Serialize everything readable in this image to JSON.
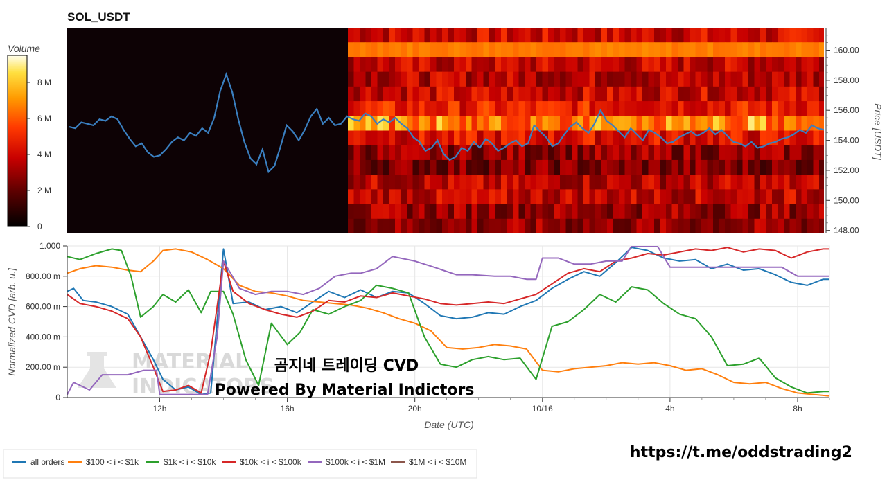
{
  "title": "SOL_USDT",
  "colorbar": {
    "label": "Volume",
    "ticks": [
      "0",
      "2 M",
      "4 M",
      "6 M",
      "8 M"
    ],
    "tick_values": [
      0,
      2,
      4,
      6,
      8
    ],
    "max": 9.5
  },
  "watermark": {
    "line1": "곰지네 트레이딩 CVD",
    "line2": "Powered By Material Indictors",
    "logo_line1": "MATERIAL",
    "logo_line2": "INDICATORS"
  },
  "url_text": "https://t.me/oddstrading2",
  "colors": {
    "all_orders": "#1f77b4",
    "r100_1k": "#ff7f0e",
    "r1k_10k": "#2ca02c",
    "r10k_100k": "#d62728",
    "r100k_1m": "#9467bd",
    "r1m_10m": "#8c564b",
    "heatmap_bg": "#0d0205",
    "price_line": "#3a7fc0"
  },
  "chart_data": [
    {
      "type": "heatmap",
      "title": "SOL_USDT",
      "ylabel": "Price [USDT]",
      "ylim": [
        147.8,
        161.5
      ],
      "y_ticks": [
        "148.00",
        "150.00",
        "152.00",
        "154.00",
        "156.00",
        "158.00",
        "160.00"
      ],
      "y_tick_values": [
        148,
        150,
        152,
        154,
        156,
        158,
        160
      ],
      "price_series": [
        154.9,
        154.8,
        155.2,
        155.1,
        155.0,
        155.4,
        155.3,
        155.6,
        155.4,
        154.7,
        154.1,
        153.6,
        153.8,
        153.2,
        152.9,
        153.0,
        153.4,
        153.9,
        154.2,
        154.0,
        154.5,
        154.3,
        154.8,
        154.5,
        155.5,
        157.3,
        158.4,
        157.2,
        155.4,
        153.9,
        152.8,
        152.4,
        153.4,
        151.9,
        152.3,
        153.6,
        155.0,
        154.6,
        154.0,
        154.7,
        155.6,
        156.1,
        155.1,
        155.5,
        155.0,
        155.1,
        155.6,
        155.4,
        155.3,
        155.8,
        155.6,
        155.1,
        155.4,
        155.2,
        155.5,
        155.1,
        154.8,
        154.2,
        153.9,
        153.3,
        153.5,
        154.0,
        153.1,
        152.7,
        152.9,
        153.5,
        153.3,
        153.9,
        153.5,
        154.1,
        153.8,
        153.3,
        153.5,
        153.8,
        154.0,
        153.6,
        153.8,
        155.0,
        154.6,
        154.2,
        153.6,
        153.8,
        154.4,
        154.9,
        155.2,
        154.8,
        154.5,
        155.1,
        156.0,
        155.3,
        155.0,
        154.6,
        154.2,
        154.8,
        154.4,
        154.0,
        154.7,
        154.5,
        154.2,
        153.8,
        153.9,
        154.2,
        154.4,
        154.6,
        154.3,
        154.5,
        154.8,
        154.4,
        154.7,
        154.3,
        153.9,
        153.8,
        153.6,
        153.9,
        153.5,
        153.6,
        153.8,
        153.9,
        154.1,
        154.2,
        154.4,
        154.7,
        154.5,
        155.0,
        154.8,
        154.7
      ],
      "price_series_x_range": [
        "early day 1",
        "~09:30 (day 2)"
      ]
    },
    {
      "type": "line",
      "xlabel": "Date (UTC)",
      "ylabel": "Normalized CVD [arb. u.]",
      "ylim": [
        0,
        1.0
      ],
      "y_ticks": [
        "0",
        "200.00 m",
        "400.00 m",
        "600.00 m",
        "800.00 m",
        "1.000"
      ],
      "y_tick_values": [
        0,
        0.2,
        0.4,
        0.6,
        0.8,
        1.0
      ],
      "x_ticks": [
        "12h",
        "16h",
        "20h",
        "10/16",
        "4h",
        "8h"
      ],
      "x_tick_hours": [
        12,
        16,
        20,
        24,
        28,
        32
      ],
      "x_range_hours": [
        9.1,
        33.0
      ],
      "legend_position": "bottom",
      "series": [
        {
          "name": "all orders",
          "color": "#1f77b4",
          "x": [
            9.1,
            9.3,
            9.6,
            10.0,
            10.5,
            11.0,
            11.4,
            11.8,
            12.1,
            12.5,
            12.9,
            13.3,
            13.6,
            14.0,
            14.3,
            14.8,
            15.3,
            15.8,
            16.3,
            16.8,
            17.3,
            17.8,
            18.3,
            18.8,
            19.3,
            19.8,
            20.3,
            20.8,
            21.3,
            21.8,
            22.3,
            22.8,
            23.3,
            23.8,
            24.3,
            24.8,
            25.3,
            25.8,
            26.3,
            26.8,
            27.3,
            27.8,
            28.3,
            28.8,
            29.3,
            29.8,
            30.3,
            30.8,
            31.3,
            31.8,
            32.3,
            32.8,
            33.0
          ],
          "values": [
            0.7,
            0.72,
            0.64,
            0.63,
            0.6,
            0.55,
            0.4,
            0.25,
            0.12,
            0.05,
            0.07,
            0.02,
            0.03,
            0.98,
            0.62,
            0.63,
            0.58,
            0.6,
            0.56,
            0.63,
            0.7,
            0.66,
            0.71,
            0.66,
            0.7,
            0.69,
            0.62,
            0.54,
            0.52,
            0.53,
            0.56,
            0.55,
            0.6,
            0.64,
            0.72,
            0.78,
            0.83,
            0.8,
            0.89,
            0.99,
            0.97,
            0.92,
            0.9,
            0.91,
            0.85,
            0.88,
            0.84,
            0.85,
            0.81,
            0.76,
            0.74,
            0.78,
            0.78
          ]
        },
        {
          "name": "$100 < i < $1k",
          "color": "#ff7f0e",
          "x": [
            9.1,
            9.5,
            10.0,
            10.5,
            11.0,
            11.4,
            11.8,
            12.1,
            12.5,
            13.0,
            13.5,
            14.0,
            14.5,
            15.0,
            15.5,
            16.0,
            16.5,
            17.0,
            17.5,
            18.0,
            18.5,
            19.0,
            19.5,
            20.0,
            20.5,
            21.0,
            21.5,
            22.0,
            22.5,
            23.0,
            23.5,
            24.0,
            24.5,
            25.0,
            25.5,
            26.0,
            26.5,
            27.0,
            27.5,
            28.0,
            28.5,
            29.0,
            29.5,
            30.0,
            30.5,
            31.0,
            31.5,
            32.0,
            32.5,
            33.0
          ],
          "values": [
            0.82,
            0.85,
            0.87,
            0.86,
            0.84,
            0.83,
            0.9,
            0.97,
            0.98,
            0.96,
            0.91,
            0.85,
            0.74,
            0.7,
            0.69,
            0.67,
            0.64,
            0.63,
            0.62,
            0.61,
            0.59,
            0.56,
            0.52,
            0.49,
            0.44,
            0.33,
            0.32,
            0.33,
            0.35,
            0.34,
            0.32,
            0.18,
            0.17,
            0.19,
            0.2,
            0.21,
            0.23,
            0.22,
            0.23,
            0.21,
            0.18,
            0.19,
            0.15,
            0.1,
            0.09,
            0.1,
            0.06,
            0.03,
            0.02,
            0.01
          ]
        },
        {
          "name": "$1k < i < $10k",
          "color": "#2ca02c",
          "x": [
            9.1,
            9.5,
            10.0,
            10.5,
            10.8,
            11.1,
            11.4,
            11.8,
            12.1,
            12.5,
            12.9,
            13.3,
            13.6,
            14.0,
            14.3,
            14.7,
            15.1,
            15.5,
            16.0,
            16.4,
            16.8,
            17.3,
            17.8,
            18.3,
            18.8,
            19.3,
            19.8,
            20.3,
            20.8,
            21.3,
            21.8,
            22.3,
            22.8,
            23.3,
            23.8,
            24.3,
            24.8,
            25.3,
            25.8,
            26.3,
            26.8,
            27.3,
            27.8,
            28.3,
            28.8,
            29.3,
            29.8,
            30.3,
            30.8,
            31.3,
            31.8,
            32.3,
            32.8,
            33.0
          ],
          "values": [
            0.93,
            0.91,
            0.95,
            0.98,
            0.97,
            0.8,
            0.53,
            0.6,
            0.68,
            0.63,
            0.71,
            0.56,
            0.7,
            0.7,
            0.55,
            0.25,
            0.08,
            0.49,
            0.35,
            0.43,
            0.58,
            0.55,
            0.6,
            0.64,
            0.74,
            0.72,
            0.69,
            0.4,
            0.22,
            0.2,
            0.25,
            0.27,
            0.25,
            0.26,
            0.12,
            0.47,
            0.5,
            0.58,
            0.68,
            0.63,
            0.73,
            0.71,
            0.62,
            0.55,
            0.52,
            0.4,
            0.21,
            0.22,
            0.26,
            0.13,
            0.07,
            0.03,
            0.04,
            0.04
          ]
        },
        {
          "name": "$10k < i < $100k",
          "color": "#d62728",
          "x": [
            9.1,
            9.5,
            10.0,
            10.5,
            11.0,
            11.4,
            11.8,
            12.1,
            12.5,
            12.9,
            13.3,
            13.6,
            14.0,
            14.3,
            14.8,
            15.3,
            15.8,
            16.3,
            16.8,
            17.3,
            17.8,
            18.3,
            18.8,
            19.3,
            19.8,
            20.3,
            20.8,
            21.3,
            21.8,
            22.3,
            22.8,
            23.3,
            23.8,
            24.3,
            24.8,
            25.3,
            25.8,
            26.3,
            26.8,
            27.3,
            27.8,
            28.3,
            28.8,
            29.3,
            29.8,
            30.3,
            30.8,
            31.3,
            31.8,
            32.3,
            32.8,
            33.0
          ],
          "values": [
            0.68,
            0.62,
            0.6,
            0.57,
            0.52,
            0.4,
            0.2,
            0.04,
            0.05,
            0.08,
            0.03,
            0.3,
            0.9,
            0.7,
            0.62,
            0.58,
            0.55,
            0.53,
            0.57,
            0.64,
            0.63,
            0.67,
            0.66,
            0.69,
            0.67,
            0.65,
            0.62,
            0.61,
            0.62,
            0.63,
            0.62,
            0.65,
            0.68,
            0.75,
            0.82,
            0.85,
            0.83,
            0.9,
            0.92,
            0.95,
            0.94,
            0.96,
            0.98,
            0.97,
            0.99,
            0.96,
            0.98,
            0.97,
            0.92,
            0.96,
            0.98,
            0.98
          ]
        },
        {
          "name": "$100k < i < $1M",
          "color": "#9467bd",
          "x": [
            9.1,
            9.3,
            9.8,
            10.2,
            10.5,
            11.0,
            11.5,
            11.9,
            12.0,
            13.0,
            13.5,
            13.8,
            14.0,
            14.5,
            15.0,
            15.5,
            16.0,
            16.5,
            17.0,
            17.5,
            18.0,
            18.3,
            18.8,
            19.3,
            20.0,
            20.6,
            21.3,
            21.8,
            22.5,
            23.0,
            23.5,
            23.8,
            24.0,
            24.5,
            25.0,
            25.5,
            26.0,
            26.5,
            26.8,
            27.2,
            27.6,
            28.0,
            29.0,
            29.5,
            30.0,
            30.5,
            31.0,
            31.5,
            32.0,
            32.5,
            33.0
          ],
          "values": [
            0.02,
            0.1,
            0.05,
            0.15,
            0.15,
            0.15,
            0.18,
            0.18,
            0.02,
            0.02,
            0.02,
            0.4,
            0.9,
            0.72,
            0.68,
            0.7,
            0.7,
            0.68,
            0.72,
            0.8,
            0.82,
            0.82,
            0.85,
            0.93,
            0.9,
            0.86,
            0.81,
            0.81,
            0.8,
            0.8,
            0.78,
            0.78,
            0.92,
            0.92,
            0.88,
            0.88,
            0.9,
            0.9,
            1.0,
            1.0,
            1.0,
            0.86,
            0.86,
            0.86,
            0.86,
            0.86,
            0.86,
            0.86,
            0.8,
            0.8,
            0.8
          ]
        },
        {
          "name": "$1M < i < $10M",
          "color": "#8c564b",
          "x": [],
          "values": []
        }
      ]
    }
  ]
}
